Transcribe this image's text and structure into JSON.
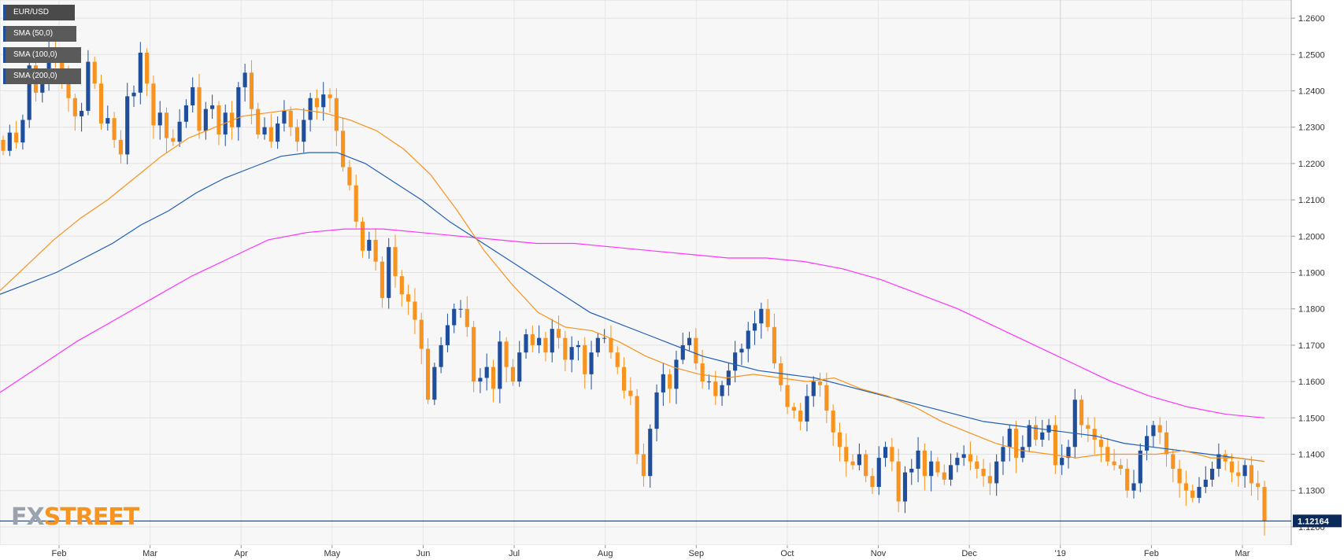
{
  "chart_data": {
    "type": "candlestick",
    "symbol": "EUR/USD",
    "x_labels": [
      "Feb",
      "Mar",
      "Apr",
      "May",
      "Jun",
      "Jul",
      "Aug",
      "Sep",
      "Oct",
      "Nov",
      "Dec",
      "'19",
      "Feb",
      "Mar"
    ],
    "y_ticks": [
      "1.2600",
      "1.2500",
      "1.2400",
      "1.2300",
      "1.2200",
      "1.2100",
      "1.2000",
      "1.1900",
      "1.1800",
      "1.1700",
      "1.1600",
      "1.1500",
      "1.1400",
      "1.1300",
      "1.1200"
    ],
    "ylim": [
      1.115,
      1.265
    ],
    "last_price": "1.12164",
    "grid": true,
    "colors": {
      "up": "#1f4e9c",
      "down": "#f7931e",
      "sma50": "#f7931e",
      "sma100": "#1f5fb4",
      "sma200": "#ff33ff",
      "price_line": "#0b2a5c"
    },
    "legend": [
      {
        "label": "EUR/USD",
        "color": "#1f4e9c"
      },
      {
        "label": "SMA (50,0)",
        "color": "#f7931e"
      },
      {
        "label": "SMA (100,0)",
        "color": "#1f5fb4"
      },
      {
        "label": "SMA (200,0)",
        "color": "#ff33ff"
      }
    ],
    "candle_close_path": [
      1.2235,
      1.2285,
      1.2258,
      1.232,
      1.247,
      1.2395,
      1.243,
      1.252,
      1.2495,
      1.244,
      1.238,
      1.233,
      1.2345,
      1.248,
      1.242,
      1.231,
      1.2325,
      1.2265,
      1.2225,
      1.2385,
      1.2395,
      1.2505,
      1.242,
      1.2305,
      1.234,
      1.227,
      1.226,
      1.2315,
      1.236,
      1.241,
      1.229,
      1.235,
      1.236,
      1.228,
      1.234,
      1.23,
      1.241,
      1.245,
      1.235,
      1.228,
      1.23,
      1.226,
      1.231,
      1.2345,
      1.23,
      1.226,
      1.232,
      1.238,
      1.2355,
      1.239,
      1.238,
      1.229,
      1.219,
      1.214,
      1.204,
      1.196,
      1.199,
      1.193,
      1.183,
      1.197,
      1.189,
      1.184,
      1.182,
      1.177,
      1.169,
      1.155,
      1.164,
      1.17,
      1.1755,
      1.18,
      1.18,
      1.175,
      1.16,
      1.161,
      1.164,
      1.158,
      1.171,
      1.164,
      1.16,
      1.168,
      1.173,
      1.17,
      1.172,
      1.168,
      1.1745,
      1.172,
      1.166,
      1.1695,
      1.17,
      1.162,
      1.168,
      1.172,
      1.172,
      1.168,
      1.164,
      1.1575,
      1.156,
      1.14,
      1.134,
      1.147,
      1.157,
      1.162,
      1.158,
      1.166,
      1.17,
      1.172,
      1.165,
      1.16,
      1.16,
      1.156,
      1.159,
      1.163,
      1.168,
      1.169,
      1.174,
      1.176,
      1.18,
      1.175,
      1.165,
      1.159,
      1.153,
      1.152,
      1.149,
      1.156,
      1.16,
      1.159,
      1.152,
      1.146,
      1.142,
      1.138,
      1.137,
      1.14,
      1.134,
      1.131,
      1.139,
      1.142,
      1.138,
      1.127,
      1.135,
      1.136,
      1.141,
      1.134,
      1.138,
      1.135,
      1.133,
      1.137,
      1.139,
      1.14,
      1.138,
      1.136,
      1.134,
      1.132,
      1.138,
      1.142,
      1.147,
      1.139,
      1.142,
      1.148,
      1.144,
      1.146,
      1.148,
      1.137,
      1.139,
      1.142,
      1.155,
      1.148,
      1.147,
      1.144,
      1.142,
      1.138,
      1.137,
      1.136,
      1.13,
      1.132,
      1.141,
      1.145,
      1.148,
      1.146,
      1.14,
      1.136,
      1.132,
      1.13,
      1.128,
      1.131,
      1.133,
      1.136,
      1.14,
      1.138,
      1.135,
      1.134,
      1.137,
      1.132,
      1.131,
      1.1216
    ],
    "sma50_path": [
      1.185,
      1.192,
      1.199,
      1.205,
      1.21,
      1.216,
      1.222,
      1.227,
      1.23,
      1.233,
      1.234,
      1.235,
      1.234,
      1.232,
      1.229,
      1.224,
      1.217,
      1.207,
      1.196,
      1.187,
      1.179,
      1.175,
      1.174,
      1.171,
      1.167,
      1.164,
      1.162,
      1.161,
      1.162,
      1.161,
      1.16,
      1.161,
      1.158,
      1.156,
      1.153,
      1.149,
      1.146,
      1.143,
      1.141,
      1.14,
      1.139,
      1.14,
      1.14,
      1.14,
      1.141,
      1.139,
      1.139,
      1.138
    ],
    "sma100_path": [
      1.184,
      1.187,
      1.19,
      1.194,
      1.198,
      1.203,
      1.207,
      1.212,
      1.216,
      1.219,
      1.222,
      1.223,
      1.223,
      1.22,
      1.215,
      1.21,
      1.204,
      1.199,
      1.194,
      1.189,
      1.184,
      1.179,
      1.176,
      1.173,
      1.17,
      1.167,
      1.165,
      1.163,
      1.162,
      1.161,
      1.159,
      1.157,
      1.155,
      1.153,
      1.151,
      1.149,
      1.148,
      1.147,
      1.146,
      1.145,
      1.143,
      1.142,
      1.141,
      1.14,
      1.139,
      1.138
    ],
    "sma200_path": [
      1.157,
      1.164,
      1.171,
      1.177,
      1.183,
      1.189,
      1.194,
      1.199,
      1.201,
      1.202,
      1.202,
      1.201,
      1.2,
      1.199,
      1.198,
      1.198,
      1.197,
      1.196,
      1.195,
      1.194,
      1.194,
      1.193,
      1.191,
      1.188,
      1.184,
      1.18,
      1.175,
      1.17,
      1.165,
      1.16,
      1.156,
      1.153,
      1.151,
      1.15
    ]
  },
  "branding": {
    "logo_fx": "FX",
    "logo_street": "STREET"
  }
}
